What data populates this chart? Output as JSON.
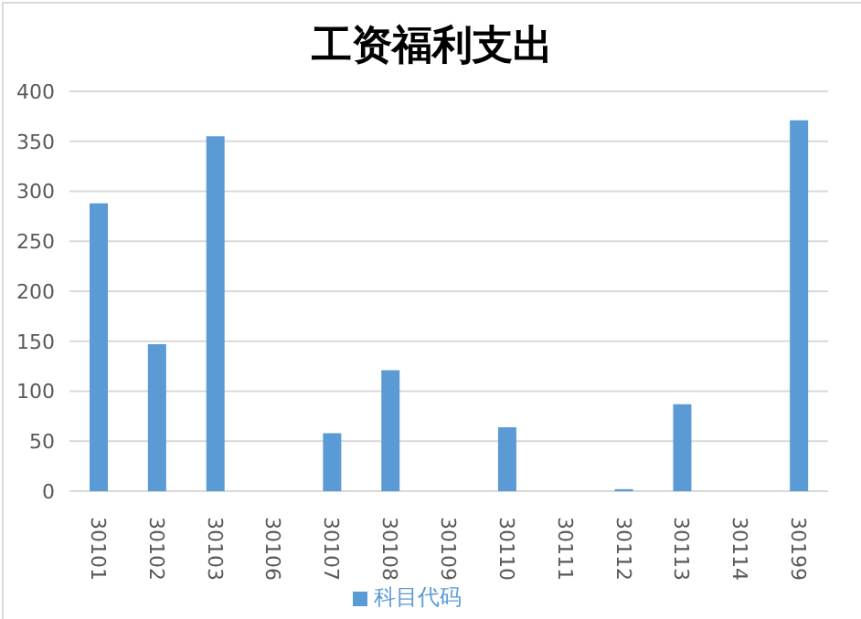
{
  "chart_data": {
    "type": "bar",
    "title": "工资福利支出",
    "categories": [
      "30101",
      "30102",
      "30103",
      "30106",
      "30107",
      "30108",
      "30109",
      "30110",
      "30111",
      "30112",
      "30113",
      "30114",
      "30199"
    ],
    "series": [
      {
        "name": "科目代码",
        "color": "#5b9bd5",
        "values": [
          288,
          147,
          355,
          0,
          58,
          121,
          0,
          64,
          0,
          2,
          87,
          0,
          371
        ]
      }
    ],
    "ylim": [
      0,
      400
    ],
    "yticks": [
      0,
      50,
      100,
      150,
      200,
      250,
      300,
      350,
      400
    ],
    "grid": "y",
    "legend": "bottom"
  }
}
